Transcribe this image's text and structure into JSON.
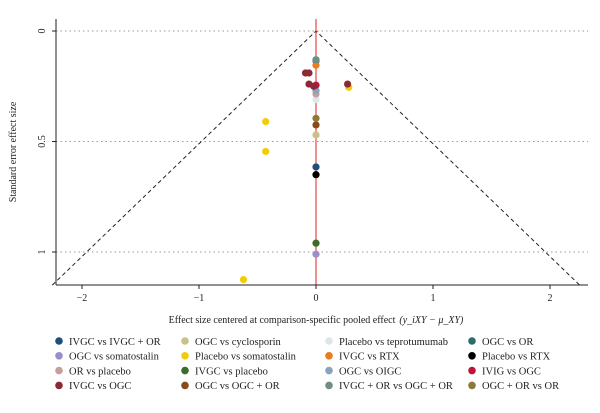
{
  "chart_data": {
    "type": "scatter",
    "subtype": "funnel",
    "xlabel": "Effect size centered at comparison-specific pooled effect",
    "xlabel_math": "(y_iXY − μ_XY)",
    "ylabel": "Standard error effect size",
    "xlim": [
      -2.25,
      2.25
    ],
    "ylim": [
      0,
      1.15
    ],
    "y_inverted": true,
    "x_ticks": [
      -2,
      -1,
      0,
      1,
      2
    ],
    "x_tick_labels": [
      "−2",
      "−1",
      "0",
      "1",
      "2"
    ],
    "y_ticks": [
      0,
      0.5,
      1
    ],
    "y_tick_labels": [
      "0",
      "0.5",
      "1"
    ],
    "grid": "horizontal-dotted",
    "legend_position": "bottom",
    "series": [
      {
        "name": "IVGC vs IVGC + OR",
        "color": "#1f4e79",
        "points": [
          [
            0,
            0.615
          ]
        ]
      },
      {
        "name": "OGC vs cyclosporin",
        "color": "#c8c28a",
        "points": [
          [
            0,
            0.47
          ]
        ]
      },
      {
        "name": "Placebo vs teprotumumab",
        "color": "#dde6ec",
        "points": [
          [
            0,
            0.31
          ]
        ]
      },
      {
        "name": "OGC vs OR",
        "color": "#2a6e6e",
        "points": [
          [
            0,
            0.135
          ]
        ]
      },
      {
        "name": "OGC vs somatostalin",
        "color": "#9a8fc8",
        "points": [
          [
            0,
            1.01
          ]
        ]
      },
      {
        "name": "Placebo vs somatostalin",
        "color": "#f2cc0c",
        "points": [
          [
            -0.62,
            1.125
          ],
          [
            -0.43,
            0.41
          ],
          [
            -0.43,
            0.545
          ],
          [
            0.28,
            0.255
          ]
        ]
      },
      {
        "name": "IVGC vs RTX",
        "color": "#e87d1e",
        "points": [
          [
            0,
            0.155
          ]
        ]
      },
      {
        "name": "Placebo vs RTX",
        "color": "#000000",
        "points": [
          [
            0,
            0.65
          ]
        ]
      },
      {
        "name": "OR vs placebo",
        "color": "#c4a09a",
        "points": [
          [
            0,
            0.285
          ]
        ]
      },
      {
        "name": "IVGC vs placebo",
        "color": "#3d6b2a",
        "points": [
          [
            0,
            0.96
          ]
        ]
      },
      {
        "name": "OGC vs OIGC",
        "color": "#8aa2bc",
        "points": [
          [
            0,
            0.27
          ]
        ]
      },
      {
        "name": "IVIG vs OGC",
        "color": "#c0143c",
        "points": [
          [
            0,
            0.245
          ]
        ]
      },
      {
        "name": "IVGC vs OGC",
        "color": "#8b2a35",
        "points": [
          [
            -0.09,
            0.19
          ],
          [
            -0.06,
            0.19
          ],
          [
            -0.06,
            0.24
          ],
          [
            -0.02,
            0.25
          ],
          [
            0.27,
            0.24
          ]
        ]
      },
      {
        "name": "OGC vs OGC + OR",
        "color": "#8b4a1a",
        "points": [
          [
            0,
            0.425
          ]
        ]
      },
      {
        "name": "IVGC + OR vs OGC + OR",
        "color": "#6e8f86",
        "points": [
          [
            0,
            0.13
          ]
        ]
      },
      {
        "name": "OGC + OR vs OR",
        "color": "#8c7a3a",
        "points": [
          [
            0,
            0.395
          ]
        ]
      }
    ]
  }
}
